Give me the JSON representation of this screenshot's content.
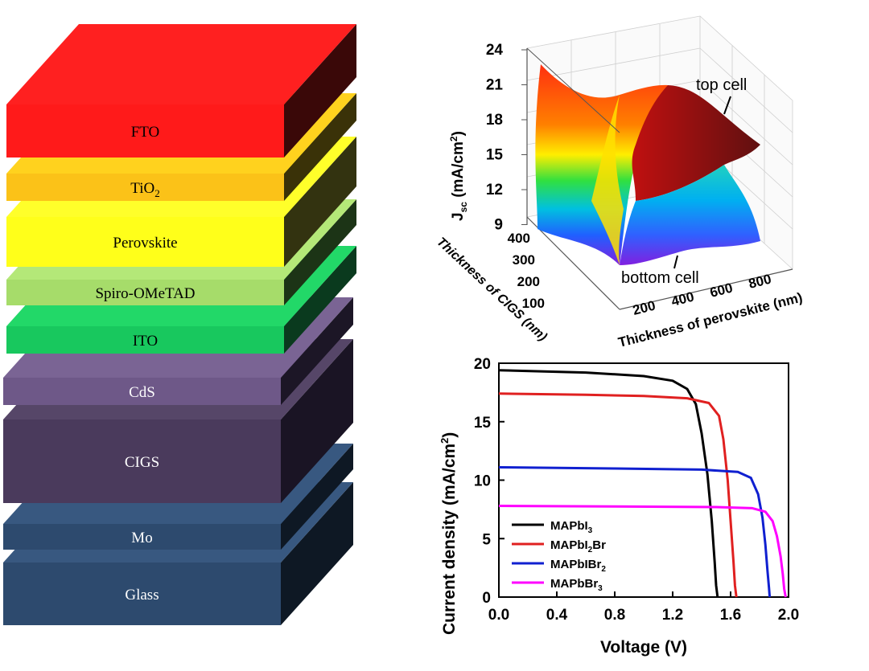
{
  "stack": {
    "layers": [
      {
        "id": "fto",
        "label": "FTO",
        "front": "#ff1a1a",
        "top": "#ff2020",
        "side": "#3a0808"
      },
      {
        "id": "tio2",
        "label": "TiO",
        "sub": "2",
        "front": "#fbc218",
        "top": "#ffd21e",
        "side": "#3a3208"
      },
      {
        "id": "perovskite",
        "label": "Perovskite",
        "front": "#ffff1a",
        "top": "#ffff2a",
        "side": "#333310"
      },
      {
        "id": "spiro",
        "label": "Spiro-OMeTAD",
        "front": "#a6dc6a",
        "top": "#b4e878",
        "side": "#1c3416"
      },
      {
        "id": "ito",
        "label": "ITO",
        "front": "#18c85e",
        "top": "#22d868",
        "side": "#0a3a1e"
      },
      {
        "id": "cds",
        "label": "CdS",
        "front": "#6e5888",
        "top": "#7a6494",
        "side": "#1c1626"
      },
      {
        "id": "cigs",
        "label": "CIGS",
        "front": "#4a3a5c",
        "top": "#564668",
        "side": "#1a1424"
      },
      {
        "id": "mo",
        "label": "Mo",
        "front": "#2d4a6e",
        "top": "#385880",
        "side": "#0e1824"
      },
      {
        "id": "glass",
        "label": "Glass",
        "front": "#2d4a6e",
        "top": "#385880",
        "side": "#0e1824"
      }
    ]
  },
  "surface3d": {
    "z_label": "J",
    "z_label_sub": "sc",
    "z_label_rest": " (mA/cm",
    "z_label_sup": "2",
    "z_label_end": ")",
    "z_ticks": [
      "24",
      "21",
      "18",
      "15",
      "12",
      "9"
    ],
    "y_label": "Thickness of CIGS (nm)",
    "y_ticks": [
      "400",
      "300",
      "200",
      "100"
    ],
    "x_label": "Thickness of perovskite (nm)",
    "x_ticks": [
      "200",
      "400",
      "600",
      "800"
    ],
    "annotation_top": "top cell",
    "annotation_bottom": "bottom cell"
  },
  "chart_data": {
    "type": "line",
    "xlabel": "Voltage (V)",
    "ylabel": "Current density (mA/cm",
    "ylabel_sup": "2",
    "ylabel_end": ")",
    "xlim": [
      0.0,
      2.0
    ],
    "ylim": [
      0,
      20
    ],
    "x_ticks": [
      "0.0",
      "0.4",
      "0.8",
      "1.2",
      "1.6",
      "2.0"
    ],
    "y_ticks": [
      "0",
      "5",
      "10",
      "15",
      "20"
    ],
    "series": [
      {
        "name": "MAPbI",
        "sub": "3",
        "color": "#000000",
        "x": [
          0.0,
          0.6,
          1.0,
          1.2,
          1.3,
          1.36,
          1.4,
          1.44,
          1.47,
          1.49,
          1.5,
          1.51
        ],
        "y": [
          19.4,
          19.2,
          18.9,
          18.5,
          17.8,
          16.5,
          14.0,
          10.5,
          6.5,
          3.0,
          1.0,
          0.0
        ]
      },
      {
        "name": "MAPbI",
        "sub": "2",
        "name2": "Br",
        "color": "#e02020",
        "x": [
          0.0,
          0.6,
          1.0,
          1.3,
          1.45,
          1.52,
          1.55,
          1.58,
          1.6,
          1.62,
          1.63,
          1.64
        ],
        "y": [
          17.4,
          17.3,
          17.2,
          17.0,
          16.6,
          15.5,
          13.5,
          10.0,
          6.5,
          3.0,
          1.0,
          0.0
        ]
      },
      {
        "name": "MAPbIBr",
        "sub": "2",
        "color": "#1020d0",
        "x": [
          0.0,
          0.8,
          1.4,
          1.65,
          1.74,
          1.79,
          1.82,
          1.84,
          1.855,
          1.865,
          1.87
        ],
        "y": [
          11.1,
          11.0,
          10.9,
          10.7,
          10.2,
          8.8,
          6.8,
          4.5,
          2.2,
          0.8,
          0.0
        ]
      },
      {
        "name": "MAPbBr",
        "sub": "3",
        "color": "#ff00ff",
        "x": [
          0.0,
          0.8,
          1.5,
          1.75,
          1.84,
          1.89,
          1.92,
          1.945,
          1.96,
          1.97,
          1.98
        ],
        "y": [
          7.8,
          7.75,
          7.7,
          7.6,
          7.3,
          6.5,
          5.2,
          3.5,
          2.0,
          0.7,
          0.0
        ]
      }
    ]
  }
}
